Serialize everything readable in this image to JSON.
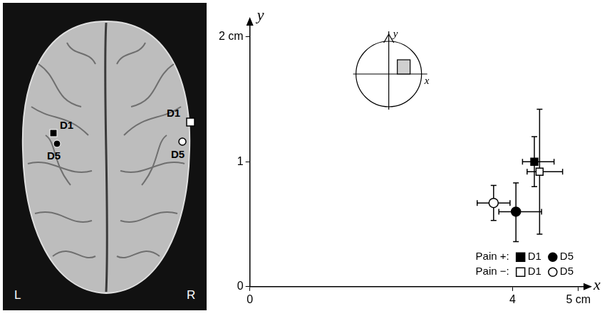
{
  "chart_data": {
    "type": "scatter",
    "x_label": "x",
    "y_label": "y",
    "xlim": [
      0,
      5.1
    ],
    "xticks": [
      0,
      4,
      {
        "value": 5,
        "label": "5 cm"
      }
    ],
    "ylim": [
      0,
      2.1
    ],
    "yticks": [
      0,
      1,
      {
        "value": 2,
        "label": "2 cm"
      }
    ],
    "grid": false,
    "legend": "lower right",
    "series": [
      {
        "group": "Pain +:",
        "name": "D1",
        "marker": "square",
        "color": "#000000",
        "x": [
          4.33
        ],
        "values": [
          1.0
        ],
        "xerr": [
          [
            4.15,
            4.63
          ]
        ],
        "yerr": [
          [
            0.8,
            1.2
          ]
        ]
      },
      {
        "group": "Pain +:",
        "name": "D5",
        "marker": "circle",
        "color": "#000000",
        "x": [
          4.05
        ],
        "values": [
          0.6
        ],
        "xerr": [
          [
            3.79,
            4.44
          ]
        ],
        "yerr": [
          [
            0.36,
            0.83
          ]
        ]
      },
      {
        "group": "Pain −:",
        "name": "D1",
        "marker": "square",
        "color": "#ffffff",
        "x": [
          4.41
        ],
        "values": [
          0.92
        ],
        "xerr": [
          [
            4.22,
            4.76
          ]
        ],
        "yerr": [
          [
            0.42,
            1.42
          ]
        ]
      },
      {
        "group": "Pain −:",
        "name": "D5",
        "marker": "circle",
        "color": "#ffffff",
        "x": [
          3.71
        ],
        "values": [
          0.67
        ],
        "xerr": [
          [
            3.46,
            3.96
          ]
        ],
        "yerr": [
          [
            0.53,
            0.81
          ]
        ]
      }
    ],
    "inset_labels": {
      "x": "x",
      "y": "y"
    }
  },
  "brain": {
    "side_labels": [
      "L",
      "R"
    ],
    "left_markers": [
      "D1",
      "D5"
    ],
    "right_markers": [
      "D1",
      "D5"
    ]
  }
}
